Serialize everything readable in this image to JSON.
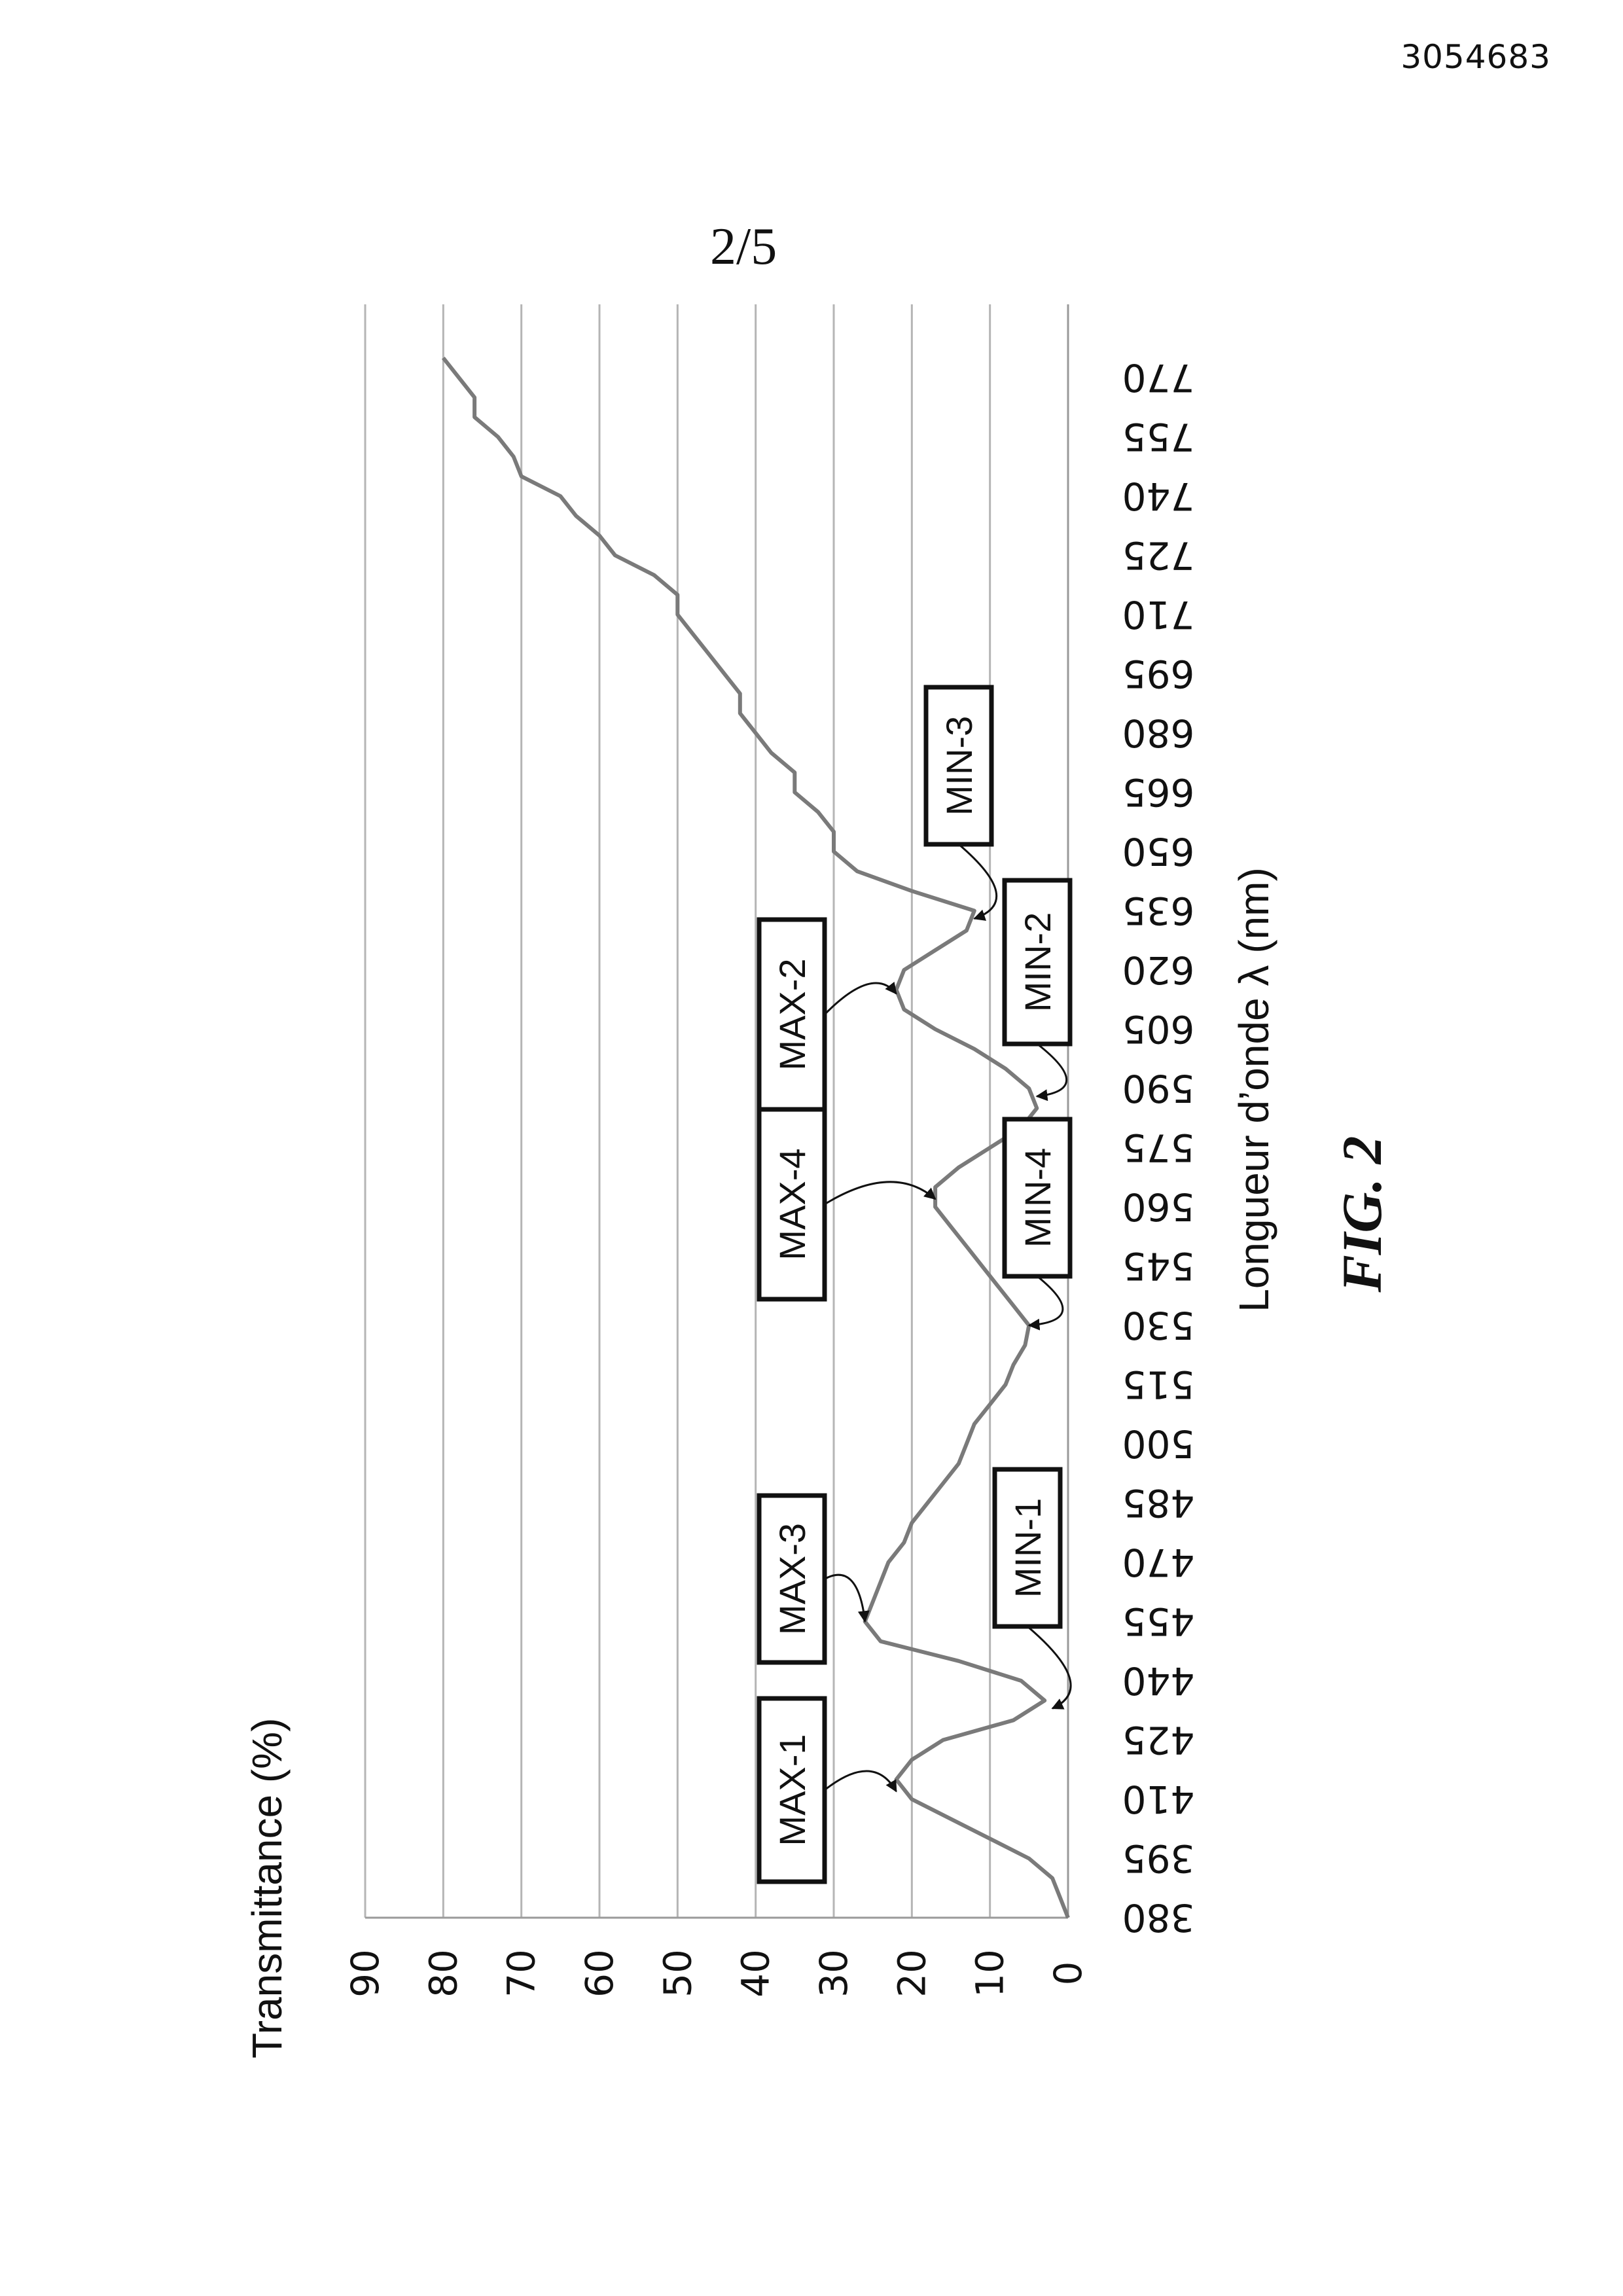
{
  "header": {
    "document_number": "3054683",
    "sheet_number": "2/5"
  },
  "figure_label": "FIG. 2",
  "chart_data": {
    "type": "line",
    "orientation": "rotated 90° clockwise on the page",
    "title": "",
    "xlabel": "Longueur d’onde λ (nm)",
    "ylabel": "Transmittance (%)",
    "xlim": [
      380,
      770
    ],
    "ylim": [
      0,
      90
    ],
    "x_ticks": [
      380,
      395,
      410,
      425,
      440,
      455,
      470,
      485,
      500,
      515,
      530,
      545,
      560,
      575,
      590,
      605,
      620,
      635,
      650,
      665,
      680,
      695,
      710,
      725,
      740,
      755,
      770
    ],
    "y_ticks": [
      0,
      10,
      20,
      30,
      40,
      50,
      60,
      70,
      80,
      90
    ],
    "grid": "horizontal",
    "legend": "none",
    "line_color": "#7a7a7a",
    "series": [
      {
        "x": [
          380,
          385,
          390,
          395,
          400,
          405,
          410,
          415,
          420,
          425,
          430,
          435,
          440,
          445,
          450,
          455,
          460,
          465,
          470,
          475,
          480,
          485,
          490,
          495,
          500,
          505,
          510,
          515,
          520,
          525,
          530,
          535,
          540,
          545,
          550,
          555,
          560,
          565,
          570,
          575,
          580,
          585,
          590,
          595,
          600,
          605,
          610,
          615,
          620,
          625,
          630,
          635,
          640,
          645,
          650,
          655,
          660,
          665,
          670,
          675,
          680,
          685,
          690,
          695,
          700,
          705,
          710,
          715,
          720,
          725,
          730,
          735,
          740,
          745,
          750,
          755,
          760,
          765,
          770,
          775
        ],
        "y": [
          0,
          1,
          2,
          5,
          10,
          15,
          20,
          22,
          20,
          16,
          7,
          3,
          6,
          14,
          24,
          26,
          25,
          24,
          23,
          21,
          20,
          18,
          16,
          14,
          13,
          12,
          10,
          8,
          7,
          5.5,
          5,
          7,
          9,
          11,
          13,
          15,
          17,
          17,
          14,
          10,
          6,
          4,
          5,
          8,
          12,
          17,
          21,
          22,
          21,
          17,
          13,
          12,
          20,
          27,
          30,
          30,
          32,
          35,
          35,
          38,
          40,
          42,
          42,
          44,
          46,
          48,
          50,
          50,
          53,
          58,
          60,
          63,
          65,
          70,
          71,
          73,
          76,
          76,
          78,
          80
        ]
      }
    ],
    "annotations": [
      {
        "label": "MAX-1",
        "x": 412,
        "y": 22
      },
      {
        "label": "MAX-3",
        "x": 455,
        "y": 26
      },
      {
        "label": "MIN-1",
        "x": 433,
        "y": 2
      },
      {
        "label": "MIN-4",
        "x": 530,
        "y": 5
      },
      {
        "label": "MAX-4",
        "x": 562,
        "y": 17
      },
      {
        "label": "MIN-2",
        "x": 588,
        "y": 4
      },
      {
        "label": "MAX-2",
        "x": 614,
        "y": 22
      },
      {
        "label": "MIN-3",
        "x": 633,
        "y": 12
      }
    ]
  }
}
